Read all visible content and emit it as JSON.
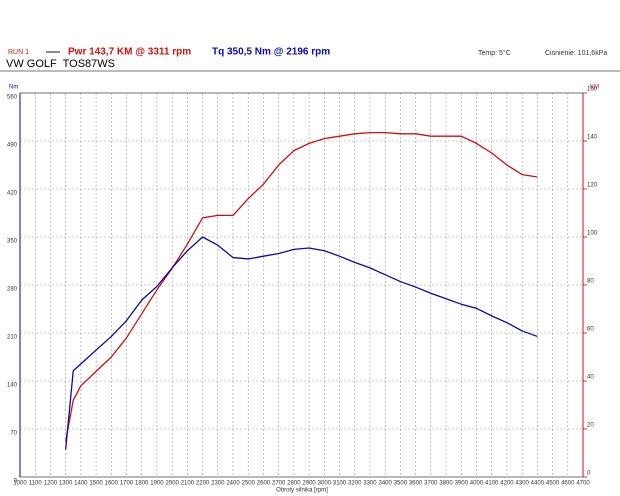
{
  "chart_data": {
    "type": "line",
    "title": "VW GOLF  TOS87WS",
    "run_label": "RUN 1",
    "temperature": "Temp: 5°C",
    "pressure": "Cisnienie: 101,6kPa",
    "x_label": "Obroty silnika [rpm]",
    "y_label": "Nm",
    "y2_label": "KM",
    "grid": true,
    "x": [
      1300,
      1350,
      1400,
      1500,
      1600,
      1700,
      1800,
      1900,
      2000,
      2100,
      2200,
      2300,
      2400,
      2500,
      2600,
      2700,
      2800,
      2900,
      3000,
      3100,
      3200,
      3300,
      3400,
      3500,
      3600,
      3700,
      3800,
      3900,
      4000,
      4100,
      4200,
      4300,
      4400
    ],
    "series": [
      {
        "name": "Pwr 143,7 KM @ 3311 rpm",
        "color": "#cc1111",
        "axis": "y2",
        "values": [
          15,
          32,
          38,
          44,
          50,
          58,
          68,
          78,
          87,
          97,
          108,
          109,
          109,
          116,
          122,
          130,
          136,
          139,
          141,
          142,
          143,
          143.5,
          143.5,
          143,
          143,
          142,
          142,
          142,
          139,
          135,
          130,
          126,
          125
        ]
      },
      {
        "name": "Tq 350,5 Nm @ 2196 rpm",
        "color": "#0a0aa8",
        "values": [
          40,
          155,
          165,
          185,
          205,
          228,
          258,
          278,
          305,
          330,
          350,
          338,
          320,
          318,
          322,
          326,
          332,
          334,
          330,
          322,
          313,
          305,
          295,
          285,
          277,
          268,
          260,
          252,
          246,
          235,
          225,
          213,
          205
        ]
      }
    ],
    "xlim": [
      1000,
      4700
    ],
    "xticks": [
      1000,
      1100,
      1200,
      1300,
      1400,
      1500,
      1600,
      1700,
      1800,
      1900,
      2000,
      2100,
      2200,
      2300,
      2400,
      2500,
      2600,
      2700,
      2800,
      2900,
      3000,
      3100,
      3200,
      3300,
      3400,
      3500,
      3600,
      3700,
      3800,
      3900,
      4000,
      4100,
      4200,
      4300,
      4400,
      4500,
      4600,
      4700
    ],
    "ylim": [
      0,
      560
    ],
    "yticks": [
      0,
      70,
      140,
      210,
      280,
      350,
      420,
      490,
      560
    ],
    "y2lim": [
      0,
      160
    ],
    "y2ticks": [
      0,
      20,
      40,
      60,
      80,
      100,
      120,
      140,
      160
    ]
  }
}
